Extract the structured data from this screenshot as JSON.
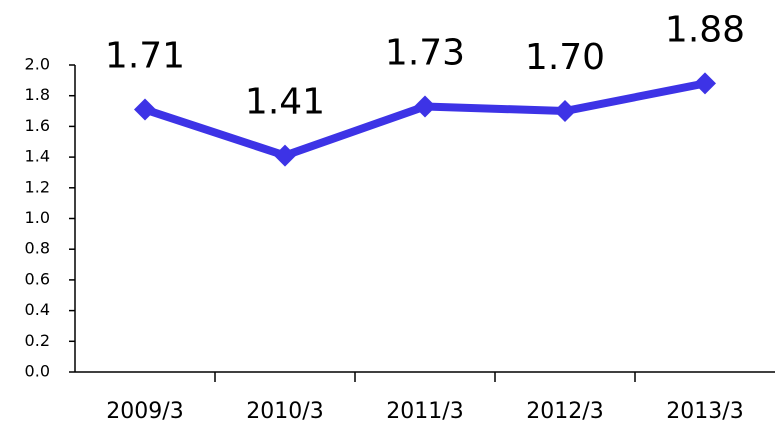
{
  "chart_data": {
    "type": "line",
    "categories": [
      "2009/3",
      "2010/3",
      "2011/3",
      "2012/3",
      "2013/3"
    ],
    "series": [
      {
        "color": "#3d33e6",
        "values": [
          1.71,
          1.41,
          1.73,
          1.7,
          1.88
        ],
        "value_labels": [
          "1.71",
          "1.41",
          "1.73",
          "1.70",
          "1.88"
        ]
      }
    ],
    "ylim": [
      0,
      2
    ],
    "yticks": [
      {
        "value": 0,
        "label": "0.0"
      },
      0.2,
      0.4,
      0.6,
      0.8,
      {
        "value": 1,
        "label": "1.0"
      },
      1.2,
      1.4,
      1.6,
      1.8,
      {
        "value": 2,
        "label": "2.0"
      }
    ],
    "grid": false
  }
}
